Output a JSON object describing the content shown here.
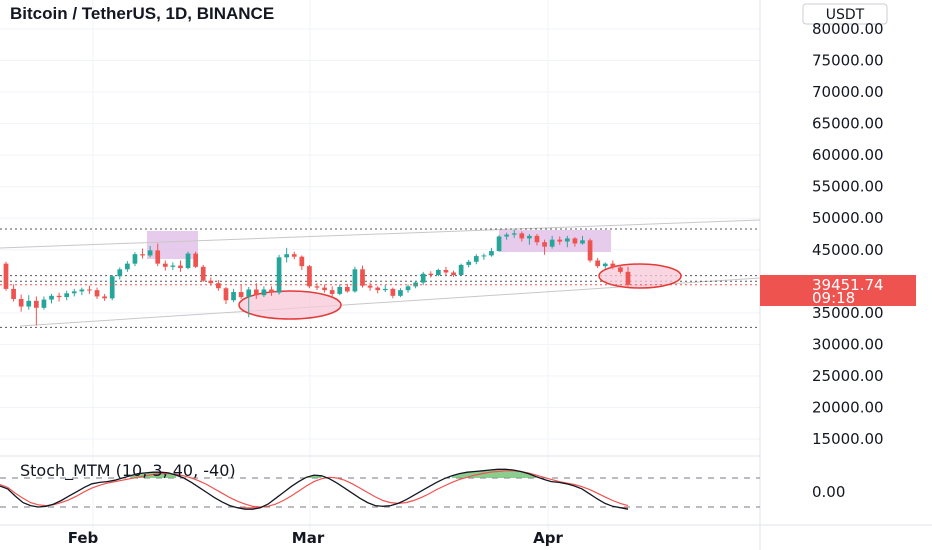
{
  "title": "Bitcoin / TetherUS, 1D, BINANCE",
  "currency": "USDT",
  "colors": {
    "up": "#26a69a",
    "down": "#ef5350",
    "annotation_ellipse": "#f8c8d8",
    "annotation_ellipse_stroke": "#e53935",
    "annotation_box": "#e1bee7",
    "trendline": "#bdbdbd",
    "level_line": "#555555",
    "price_tag": "#ef5350",
    "stoch_line": "#131722",
    "stoch_signal": "#ef5350",
    "stoch_up_fill": "#66bb6a",
    "stoch_down_fill": "#ef5350"
  },
  "price_axis": {
    "labels": [
      "80000.00",
      "75000.00",
      "70000.00",
      "65000.00",
      "60000.00",
      "55000.00",
      "50000.00",
      "45000.00",
      "35000.00",
      "30000.00",
      "25000.00",
      "20000.00",
      "15000.00"
    ],
    "values": [
      80000,
      75000,
      70000,
      65000,
      60000,
      55000,
      50000,
      45000,
      35000,
      30000,
      25000,
      20000,
      15000
    ]
  },
  "last_price": {
    "value": 39451.74,
    "label": "39451.74",
    "countdown": "09:18"
  },
  "time_axis": [
    "Feb",
    "Mar",
    "Apr"
  ],
  "indicator": {
    "title": "Stoch_MTM (10, 3, 40, -40)",
    "axis_label": "0.00"
  },
  "chart_data": {
    "type": "candlestick",
    "title": "Bitcoin / TetherUS, 1D, BINANCE",
    "ylim": [
      13000,
      81500
    ],
    "yscale": "linear",
    "horizontal_levels": [
      48300,
      40900,
      40000,
      32700
    ],
    "candles": [
      [
        42800,
        43100,
        38500,
        38800
      ],
      [
        38800,
        39500,
        36800,
        37200
      ],
      [
        37200,
        37900,
        35200,
        36000
      ],
      [
        36000,
        37800,
        35500,
        36900
      ],
      [
        36900,
        37600,
        33000,
        35800
      ],
      [
        35800,
        37600,
        35500,
        37100
      ],
      [
        37100,
        38000,
        36500,
        37700
      ],
      [
        37700,
        38200,
        36800,
        37500
      ],
      [
        37500,
        38500,
        37000,
        38100
      ],
      [
        38100,
        38800,
        37600,
        38400
      ],
      [
        38400,
        39000,
        37800,
        38700
      ],
      [
        38700,
        39300,
        38000,
        38600
      ],
      [
        38600,
        39000,
        37200,
        37600
      ],
      [
        37600,
        38000,
        36900,
        37300
      ],
      [
        37300,
        41000,
        37000,
        40800
      ],
      [
        40800,
        42200,
        40300,
        41900
      ],
      [
        41900,
        43200,
        41500,
        42800
      ],
      [
        42800,
        44600,
        42400,
        44300
      ],
      [
        44300,
        45200,
        43600,
        44100
      ],
      [
        44100,
        45600,
        43800,
        44900
      ],
      [
        44900,
        46000,
        42400,
        42800
      ],
      [
        42800,
        43300,
        41700,
        42300
      ],
      [
        42300,
        43000,
        41800,
        42500
      ],
      [
        42500,
        43300,
        41500,
        42100
      ],
      [
        42100,
        44700,
        41900,
        44400
      ],
      [
        44400,
        44700,
        42100,
        42300
      ],
      [
        42300,
        42600,
        39900,
        40100
      ],
      [
        40100,
        40600,
        39300,
        39700
      ],
      [
        39700,
        40200,
        38500,
        38900
      ],
      [
        38900,
        39100,
        36400,
        37000
      ],
      [
        37000,
        38800,
        36700,
        38300
      ],
      [
        38300,
        39400,
        37200,
        37500
      ],
      [
        37500,
        39100,
        34300,
        38700
      ],
      [
        38700,
        39700,
        37200,
        37800
      ],
      [
        37800,
        39200,
        37500,
        38700
      ],
      [
        38700,
        39200,
        37700,
        38200
      ],
      [
        38200,
        44200,
        37900,
        43800
      ],
      [
        43800,
        45300,
        43000,
        44300
      ],
      [
        44300,
        44700,
        43500,
        43900
      ],
      [
        43900,
        44100,
        41800,
        42400
      ],
      [
        42400,
        42600,
        38900,
        39200
      ],
      [
        39200,
        39700,
        38600,
        39000
      ],
      [
        39000,
        39500,
        38200,
        38600
      ],
      [
        38600,
        39200,
        37500,
        38000
      ],
      [
        38000,
        39500,
        37800,
        39100
      ],
      [
        39100,
        39600,
        38200,
        38400
      ],
      [
        38400,
        42300,
        38200,
        41900
      ],
      [
        41900,
        42500,
        39000,
        39300
      ],
      [
        39300,
        39800,
        38500,
        39000
      ],
      [
        39000,
        39200,
        38100,
        38600
      ],
      [
        38600,
        39400,
        38300,
        38800
      ],
      [
        38800,
        39000,
        37300,
        37700
      ],
      [
        37700,
        38900,
        37500,
        38600
      ],
      [
        38600,
        39500,
        38200,
        39200
      ],
      [
        39200,
        40000,
        38900,
        39800
      ],
      [
        39800,
        41500,
        39400,
        41200
      ],
      [
        41200,
        41600,
        40600,
        41000
      ],
      [
        41000,
        42000,
        40800,
        41800
      ],
      [
        41800,
        42300,
        40900,
        41400
      ],
      [
        41400,
        41700,
        40700,
        41000
      ],
      [
        41000,
        42800,
        40900,
        42600
      ],
      [
        42600,
        43400,
        42200,
        43100
      ],
      [
        43100,
        44300,
        42700,
        44000
      ],
      [
        44000,
        44400,
        43400,
        44100
      ],
      [
        44100,
        45300,
        43900,
        44800
      ],
      [
        44800,
        47300,
        44700,
        47100
      ],
      [
        47100,
        47700,
        46600,
        47400
      ],
      [
        47400,
        48200,
        46900,
        47600
      ],
      [
        47600,
        47900,
        46300,
        46800
      ],
      [
        46800,
        47500,
        45800,
        47200
      ],
      [
        47200,
        47500,
        45700,
        46200
      ],
      [
        46200,
        46600,
        44200,
        45500
      ],
      [
        45500,
        47200,
        45200,
        46600
      ],
      [
        46600,
        47100,
        45800,
        46300
      ],
      [
        46300,
        47200,
        45400,
        46800
      ],
      [
        46800,
        47000,
        45500,
        46000
      ],
      [
        46000,
        47200,
        45800,
        46500
      ],
      [
        46500,
        46800,
        43000,
        43300
      ],
      [
        43300,
        43700,
        42100,
        42400
      ],
      [
        42400,
        43000,
        42000,
        42800
      ],
      [
        42800,
        43300,
        41900,
        42200
      ],
      [
        42200,
        42600,
        41200,
        41500
      ],
      [
        41500,
        42300,
        39200,
        39450
      ]
    ],
    "stoch_mtm": {
      "main": [
        18,
        10,
        -10,
        -28,
        -36,
        -40,
        -38,
        -32,
        -22,
        -10,
        2,
        14,
        24,
        28,
        30,
        34,
        40,
        46,
        52,
        54,
        56,
        56,
        54,
        48,
        40,
        28,
        14,
        0,
        -14,
        -26,
        -36,
        -42,
        -46,
        -46,
        -42,
        -32,
        -16,
        0,
        16,
        30,
        42,
        48,
        46,
        38,
        26,
        12,
        -2,
        -16,
        -28,
        -36,
        -38,
        -36,
        -30,
        -20,
        -8,
        4,
        16,
        28,
        38,
        46,
        52,
        56,
        58,
        60,
        62,
        64,
        64,
        62,
        58,
        52,
        44,
        36,
        30,
        28,
        24,
        18,
        10,
        -4,
        -18,
        -30,
        -38,
        -42,
        -46
      ],
      "signal": [
        22,
        14,
        -2,
        -16,
        -28,
        -34,
        -36,
        -34,
        -28,
        -20,
        -10,
        2,
        12,
        20,
        26,
        30,
        34,
        38,
        42,
        46,
        50,
        52,
        52,
        50,
        46,
        40,
        32,
        22,
        10,
        -2,
        -14,
        -24,
        -32,
        -38,
        -40,
        -38,
        -32,
        -22,
        -10,
        4,
        18,
        30,
        38,
        42,
        40,
        34,
        24,
        12,
        0,
        -12,
        -22,
        -28,
        -30,
        -28,
        -22,
        -14,
        -4,
        8,
        18,
        28,
        36,
        42,
        48,
        52,
        56,
        58,
        60,
        60,
        58,
        54,
        48,
        42,
        36,
        30,
        26,
        22,
        16,
        8,
        -2,
        -12,
        -22,
        -30,
        -36
      ],
      "upper_level": 40,
      "lower_level": -40
    }
  }
}
